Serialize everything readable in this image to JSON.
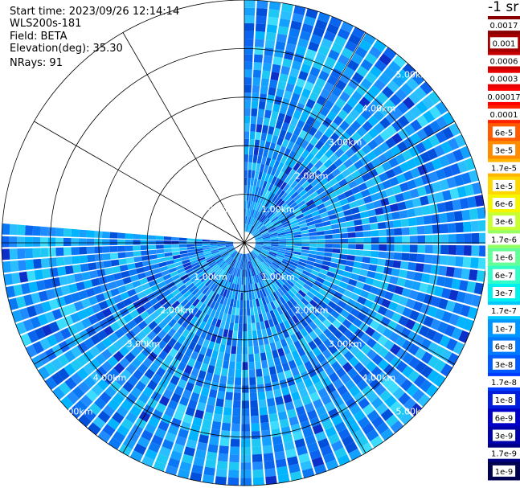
{
  "header": {
    "start_time": "Start time: 2023/09/26 12:14:14",
    "instrument": "WLS200s-181",
    "field": "Field: BETA",
    "elevation": "Elevation(deg): 35.30",
    "nrays": "NRays: 91"
  },
  "chart_data": {
    "type": "heatmap",
    "projection": "polar-ppi",
    "range_rings_km": [
      1,
      2,
      3,
      4,
      5
    ],
    "ring_labels": [
      "1.00km",
      "2.00km",
      "3.00km",
      "4.00km",
      "5.00km"
    ],
    "max_range_km": 5.0,
    "spokes_deg": [
      0,
      30,
      60,
      90,
      120,
      150,
      180,
      210,
      240,
      270,
      300,
      330
    ],
    "coverage_deg": [
      [
        0,
        275
      ]
    ],
    "units": "-1 sr",
    "colorbar": {
      "labels": [
        "0.0017",
        "0.001",
        "0.0006",
        "0.0003",
        "0.00017",
        "0.0001",
        "6e-5",
        "3e-5",
        "1.7e-5",
        "1e-5",
        "6e-6",
        "3e-6",
        "1.7e-6",
        "1e-6",
        "6e-7",
        "3e-7",
        "1.7e-7",
        "1e-7",
        "6e-8",
        "3e-8",
        "1.7e-8",
        "1e-8",
        "6e-9",
        "3e-9",
        "1.7e-9",
        "1e-9"
      ],
      "colors": [
        "#8b0000",
        "#a50000",
        "#c80000",
        "#e60000",
        "#ff0000",
        "#ff2200",
        "#ff5a00",
        "#ff8c00",
        "#ffb400",
        "#ffd700",
        "#f5f500",
        "#c8ff32",
        "#96ff64",
        "#64ff96",
        "#32ffc8",
        "#00f0f0",
        "#00c8ff",
        "#0096ff",
        "#0078ff",
        "#005aff",
        "#003cff",
        "#001edc",
        "#0000c8",
        "#0000aa",
        "#000082",
        "#000050"
      ],
      "dominant_range": [
        "1e-7",
        "1.7e-8"
      ]
    }
  }
}
